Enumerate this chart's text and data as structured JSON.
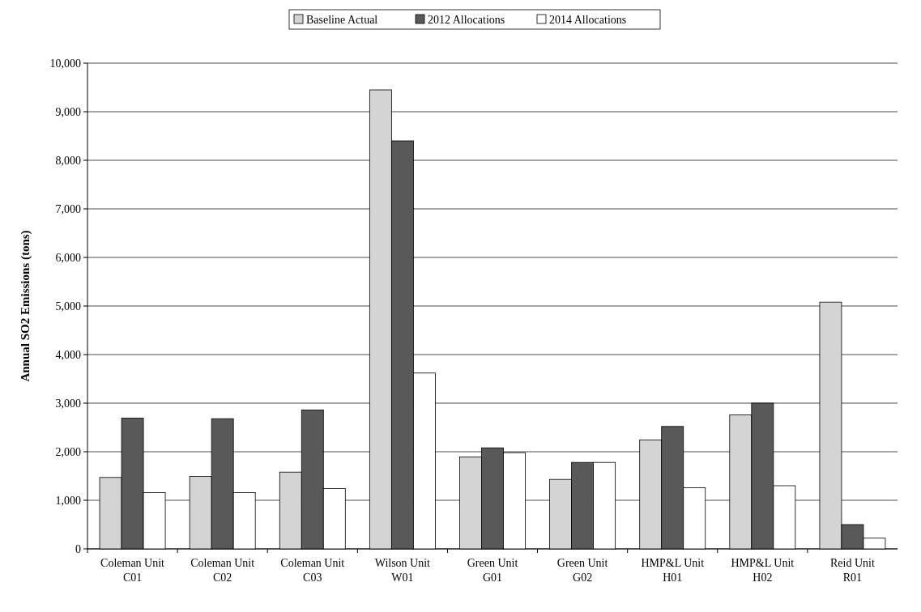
{
  "chart_data": {
    "type": "bar",
    "ylabel": "Annual SO2 Emissions (tons)",
    "categories": [
      "Coleman Unit C01",
      "Coleman Unit C02",
      "Coleman Unit C03",
      "Wilson Unit W01",
      "Green Unit G01",
      "Green Unit G02",
      "HMP&L Unit H01",
      "HMP&L Unit H02",
      "Reid Unit R01"
    ],
    "series": [
      {
        "name": "Baseline Actual",
        "color": "#d4d4d4",
        "values": [
          1470,
          1490,
          1580,
          9450,
          1890,
          1430,
          2240,
          2760,
          5080
        ]
      },
      {
        "name": "2012 Allocations",
        "color": "#595959",
        "values": [
          2690,
          2680,
          2860,
          8400,
          2080,
          1780,
          2520,
          3000,
          500
        ]
      },
      {
        "name": "2014 Allocations",
        "color": "#ffffff",
        "values": [
          1160,
          1160,
          1240,
          3620,
          1980,
          1780,
          1260,
          1300,
          220
        ]
      }
    ],
    "ylim": [
      0,
      10000
    ],
    "yticks": [
      {
        "value": 0,
        "label": "0"
      },
      {
        "value": 1000,
        "label": "1,000"
      },
      {
        "value": 2000,
        "label": "2,000"
      },
      {
        "value": 3000,
        "label": "3,000"
      },
      {
        "value": 4000,
        "label": "4,000"
      },
      {
        "value": 5000,
        "label": "5,000"
      },
      {
        "value": 6000,
        "label": "6,000"
      },
      {
        "value": 7000,
        "label": "7,000"
      },
      {
        "value": 8000,
        "label": "8,000"
      },
      {
        "value": 9000,
        "label": "9,000"
      },
      {
        "value": 10000,
        "label": "10,000"
      }
    ],
    "grid": "y",
    "legend": "top"
  }
}
